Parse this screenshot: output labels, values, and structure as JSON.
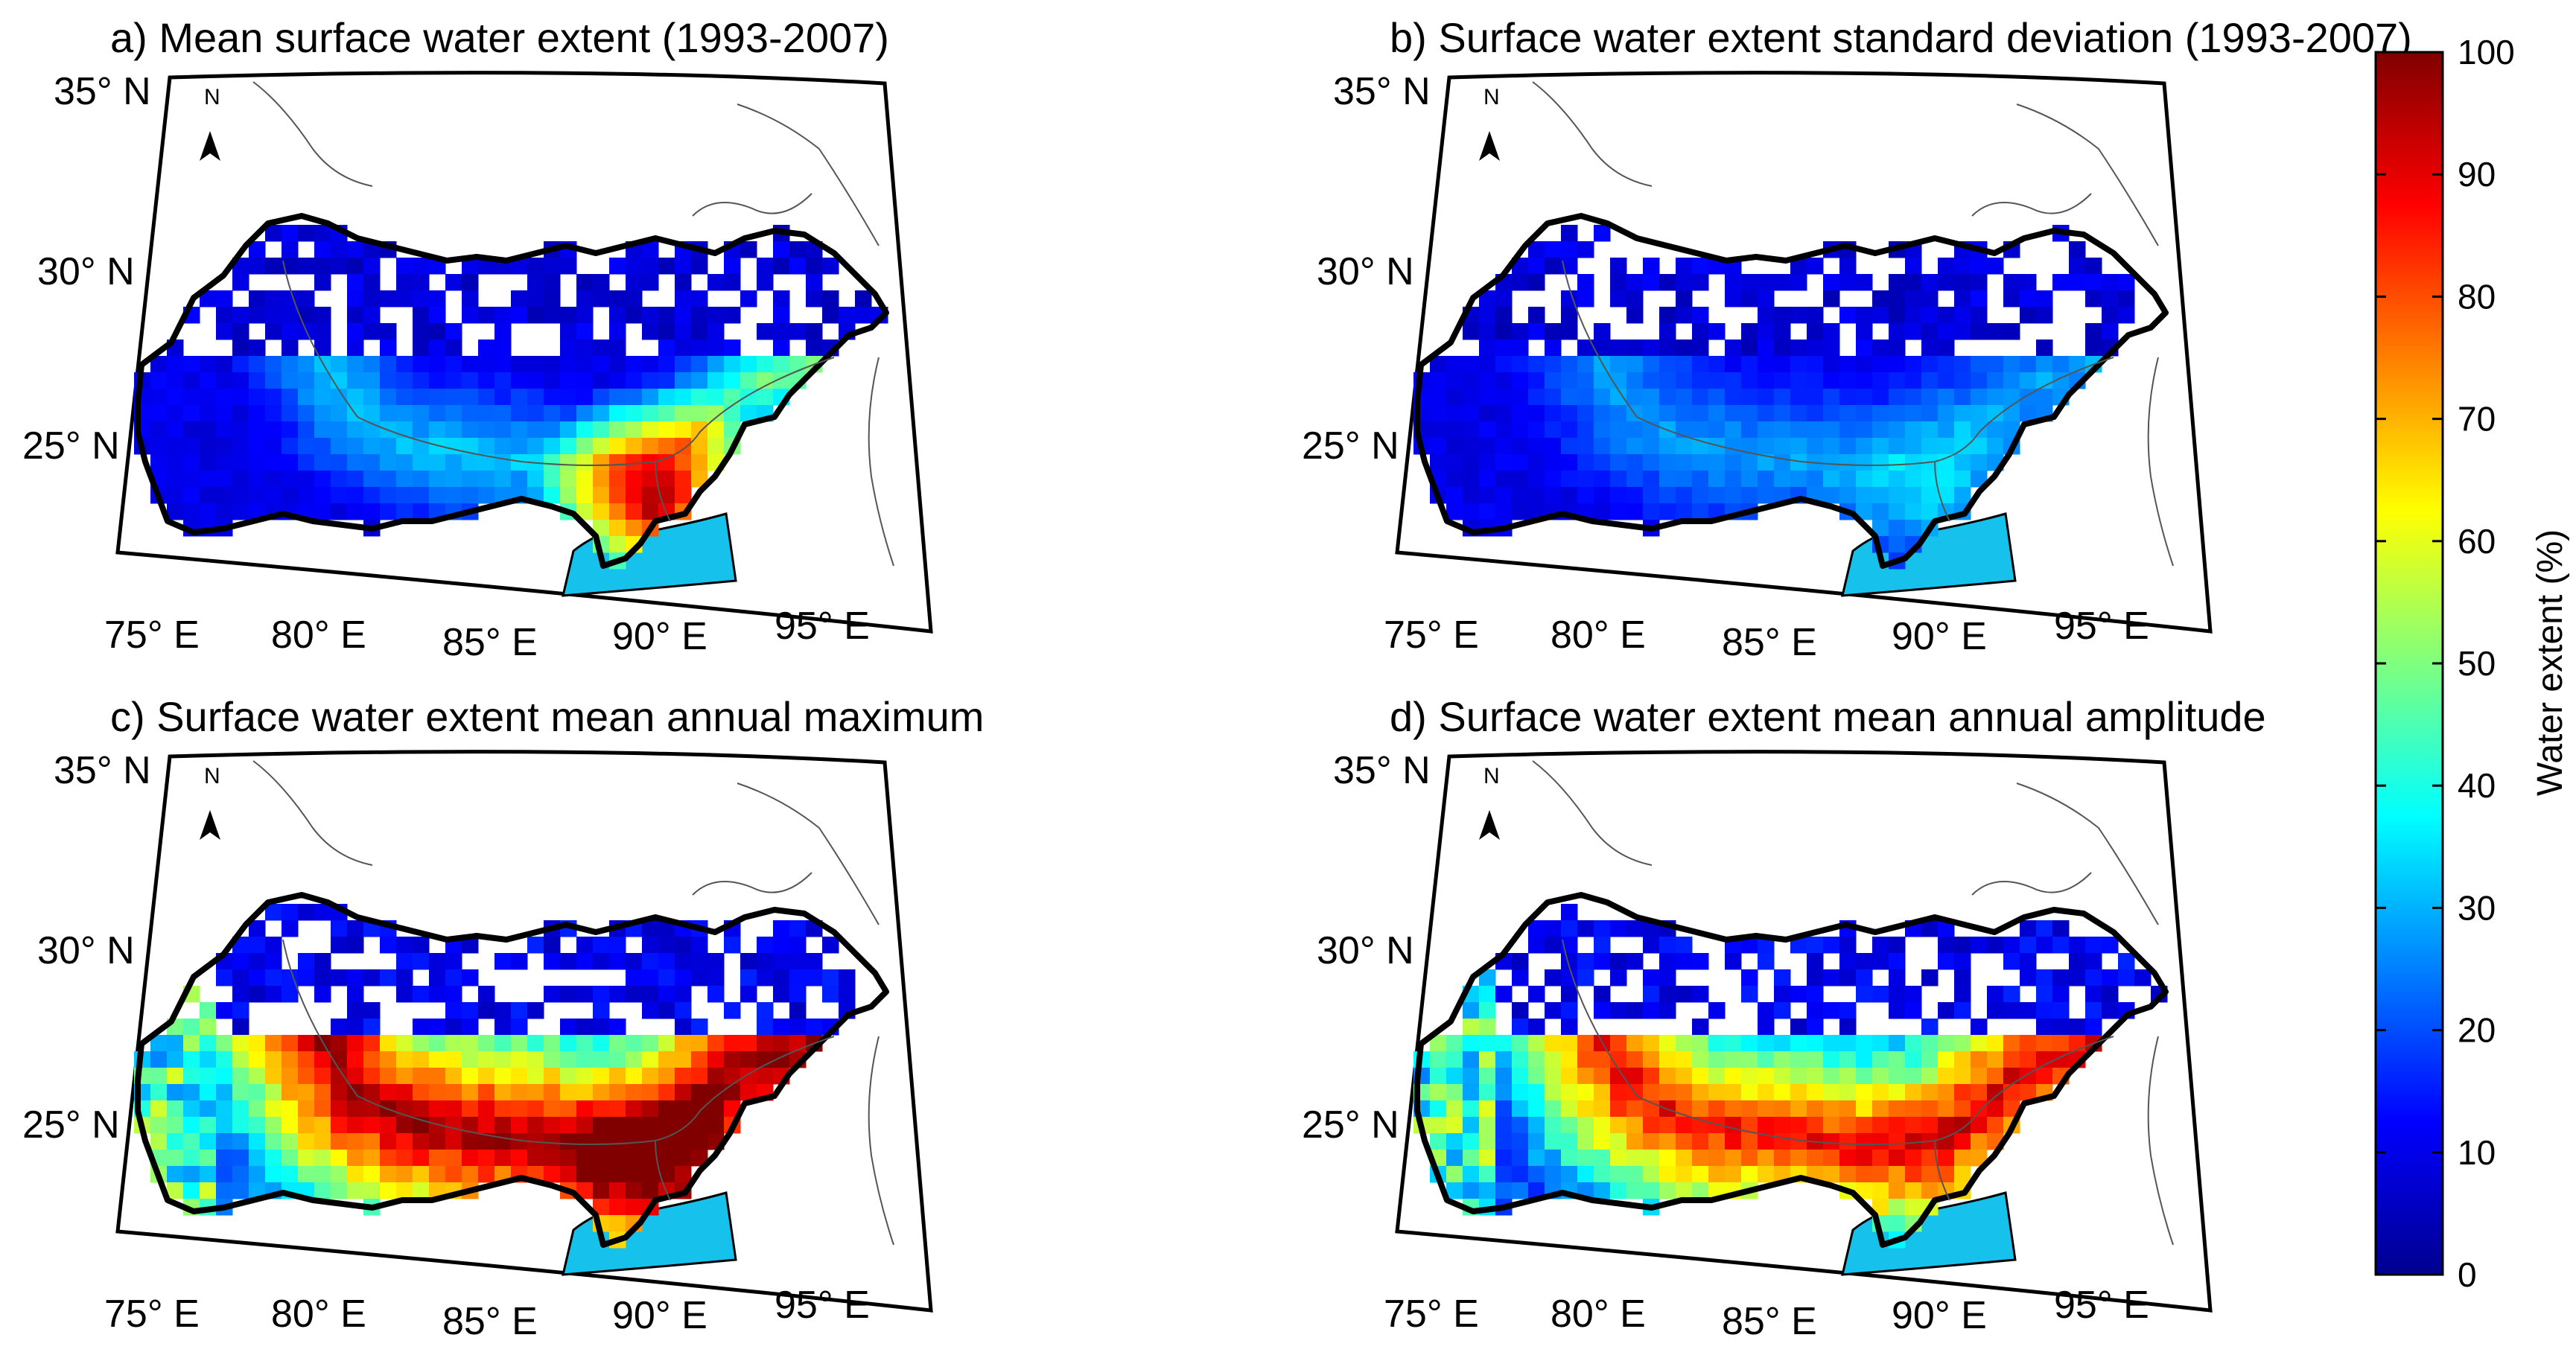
{
  "figure": {
    "colorbar": {
      "label": "Water extent (%)",
      "ticks": [
        "0",
        "10",
        "20",
        "30",
        "40",
        "50",
        "60",
        "70",
        "80",
        "90",
        "100"
      ],
      "min": 0,
      "max": 100,
      "colormap": "jet"
    },
    "north_arrow_label": "N",
    "colors": {
      "background": "#ffffff",
      "ocean": "#16c2ec",
      "frame": "#000000",
      "boundary": "#000000",
      "river": "#555555"
    },
    "panels": [
      {
        "id": "a",
        "title": "a) Mean surface water extent (1993-2007)",
        "lat_labels": [
          "35° N",
          "30° N",
          "25° N"
        ],
        "lon_labels": [
          "75° E",
          "80° E",
          "85° E",
          "90° E",
          "95° E"
        ],
        "pattern": "mean",
        "value_range_percent": [
          0,
          100
        ]
      },
      {
        "id": "b",
        "title": "b) Surface water extent standard deviation (1993-2007)",
        "lat_labels": [
          "35° N",
          "30° N",
          "25° N"
        ],
        "lon_labels": [
          "75° E",
          "80° E",
          "85° E",
          "90° E",
          "95° E"
        ],
        "pattern": "std",
        "value_range_percent": [
          0,
          35
        ]
      },
      {
        "id": "c",
        "title": "c) Surface water extent mean annual maximum",
        "lat_labels": [
          "35° N",
          "30° N",
          "25° N"
        ],
        "lon_labels": [
          "75° E",
          "80° E",
          "85° E",
          "90° E",
          "95° E"
        ],
        "pattern": "max",
        "value_range_percent": [
          0,
          100
        ]
      },
      {
        "id": "d",
        "title": "d) Surface water extent mean annual amplitude",
        "lat_labels": [
          "35° N",
          "30° N",
          "25° N"
        ],
        "lon_labels": [
          "75° E",
          "80° E",
          "85° E",
          "90° E",
          "95° E"
        ],
        "pattern": "amp",
        "value_range_percent": [
          0,
          100
        ]
      }
    ]
  }
}
